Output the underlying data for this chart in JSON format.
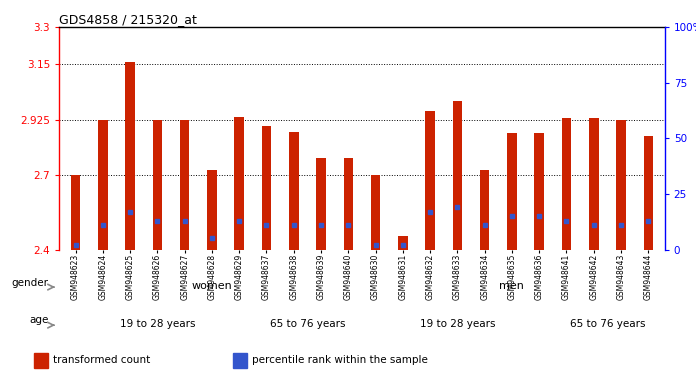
{
  "title": "GDS4858 / 215320_at",
  "samples": [
    "GSM948623",
    "GSM948624",
    "GSM948625",
    "GSM948626",
    "GSM948627",
    "GSM948628",
    "GSM948629",
    "GSM948637",
    "GSM948638",
    "GSM948639",
    "GSM948640",
    "GSM948630",
    "GSM948631",
    "GSM948632",
    "GSM948633",
    "GSM948634",
    "GSM948635",
    "GSM948636",
    "GSM948641",
    "GSM948642",
    "GSM948643",
    "GSM948644"
  ],
  "transformed_count": [
    2.7,
    2.925,
    3.16,
    2.925,
    2.925,
    2.72,
    2.935,
    2.9,
    2.875,
    2.77,
    2.77,
    2.7,
    2.455,
    2.96,
    3.0,
    2.72,
    2.87,
    2.87,
    2.93,
    2.93,
    2.925,
    2.86
  ],
  "percentile_rank": [
    2,
    11,
    17,
    13,
    13,
    5,
    13,
    11,
    11,
    11,
    11,
    2,
    2,
    17,
    19,
    11,
    15,
    15,
    13,
    11,
    11,
    13
  ],
  "y_min": 2.4,
  "y_max": 3.3,
  "y_ticks_left": [
    2.4,
    2.7,
    2.925,
    3.15,
    3.3
  ],
  "y_ticks_right": [
    0,
    25,
    50,
    75,
    100
  ],
  "bar_color": "#cc2200",
  "blue_color": "#3355cc",
  "gender_groups": [
    {
      "label": "women",
      "start": 0,
      "end": 11,
      "color": "#aaddaa"
    },
    {
      "label": "men",
      "start": 11,
      "end": 22,
      "color": "#66cc55"
    }
  ],
  "age_groups": [
    {
      "label": "19 to 28 years",
      "start": 0,
      "end": 7,
      "color": "#ddaadd"
    },
    {
      "label": "65 to 76 years",
      "start": 7,
      "end": 11,
      "color": "#cc77cc"
    },
    {
      "label": "19 to 28 years",
      "start": 11,
      "end": 18,
      "color": "#ddaadd"
    },
    {
      "label": "65 to 76 years",
      "start": 18,
      "end": 22,
      "color": "#cc77cc"
    }
  ],
  "legend": [
    {
      "label": "transformed count",
      "color": "#cc2200"
    },
    {
      "label": "percentile rank within the sample",
      "color": "#3355cc"
    }
  ]
}
